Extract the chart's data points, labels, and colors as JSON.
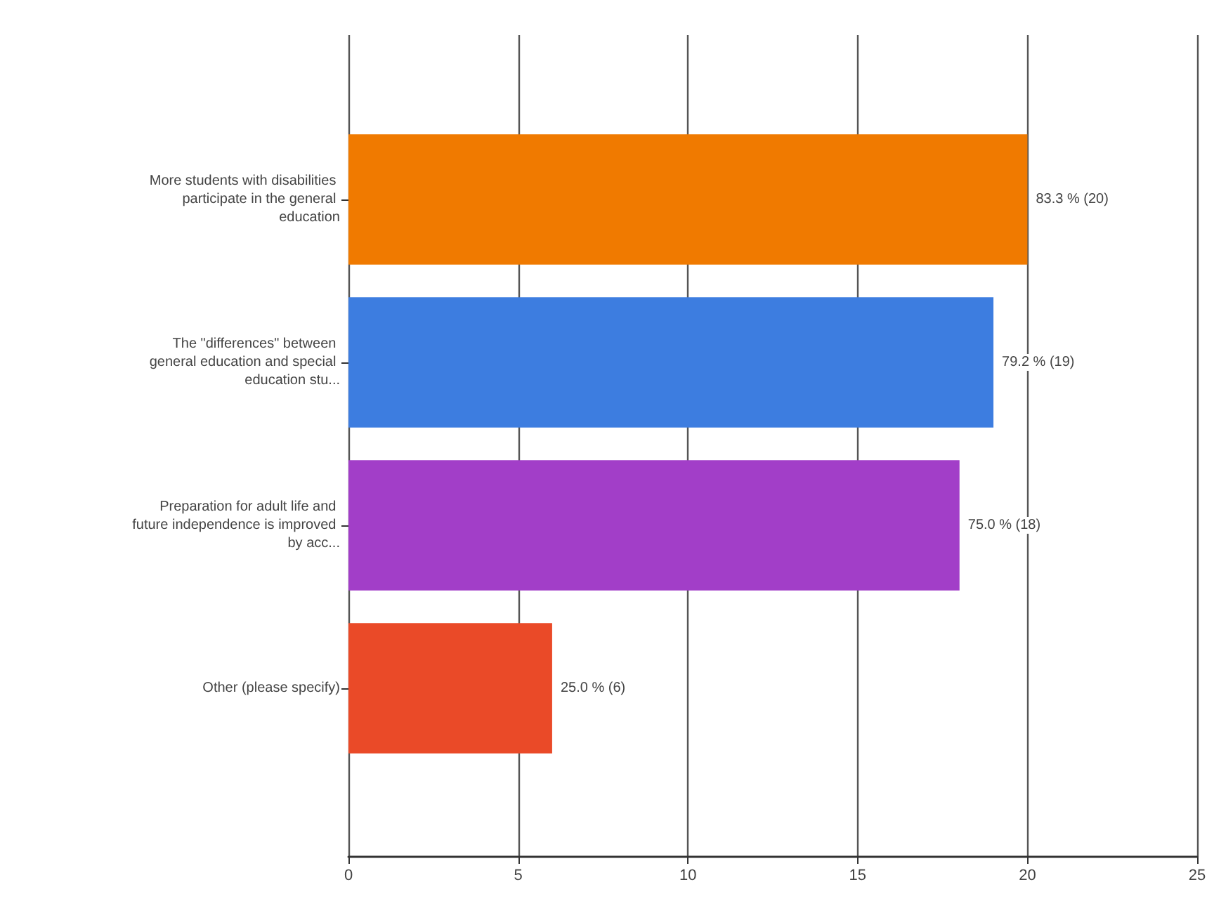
{
  "chart_data": {
    "type": "bar",
    "orientation": "horizontal",
    "categories": [
      "More students with disabilities participate in the general education",
      "The \"differences\" between general education and special education stu...",
      "Preparation for adult life and future independence is improved by acc...",
      "Other (please specify)"
    ],
    "values": [
      20,
      19,
      18,
      6
    ],
    "colors": [
      "#f07a00",
      "#3d7de0",
      "#a23ec8",
      "#ea4a28"
    ],
    "value_labels": [
      "83.3 % (20)",
      "79.2 % (19)",
      "75.0 % (18)",
      "25.0 % (6)"
    ],
    "xlim": [
      0,
      25
    ],
    "xticks": [
      0,
      5,
      10,
      15,
      20,
      25
    ],
    "grid": "x"
  }
}
